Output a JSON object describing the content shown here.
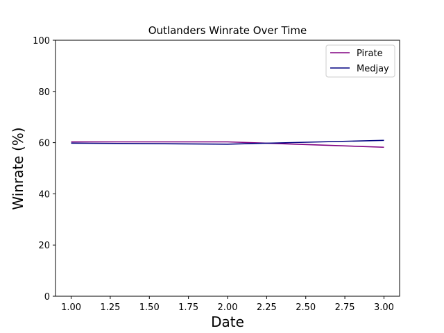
{
  "chart_data": {
    "type": "line",
    "title": "Outlanders Winrate Over Time",
    "xlabel": "Date",
    "ylabel": "Winrate (%)",
    "x": [
      1,
      2,
      3
    ],
    "xlim": [
      0.9,
      3.1
    ],
    "ylim": [
      0,
      100
    ],
    "xticks": [
      1.0,
      1.25,
      1.5,
      1.75,
      2.0,
      2.25,
      2.5,
      2.75,
      3.0
    ],
    "xtick_labels": [
      "1.00",
      "1.25",
      "1.50",
      "1.75",
      "2.00",
      "2.25",
      "2.50",
      "2.75",
      "3.00"
    ],
    "yticks": [
      0,
      20,
      40,
      60,
      80,
      100
    ],
    "ytick_labels": [
      "0",
      "20",
      "40",
      "60",
      "80",
      "100"
    ],
    "series": [
      {
        "name": "Pirate",
        "values": [
          60.3,
          60.3,
          58.2
        ],
        "color": "#800080"
      },
      {
        "name": "Medjay",
        "values": [
          59.8,
          59.4,
          60.9
        ],
        "color": "#000080"
      }
    ],
    "legend": "top-right",
    "grid": false
  }
}
